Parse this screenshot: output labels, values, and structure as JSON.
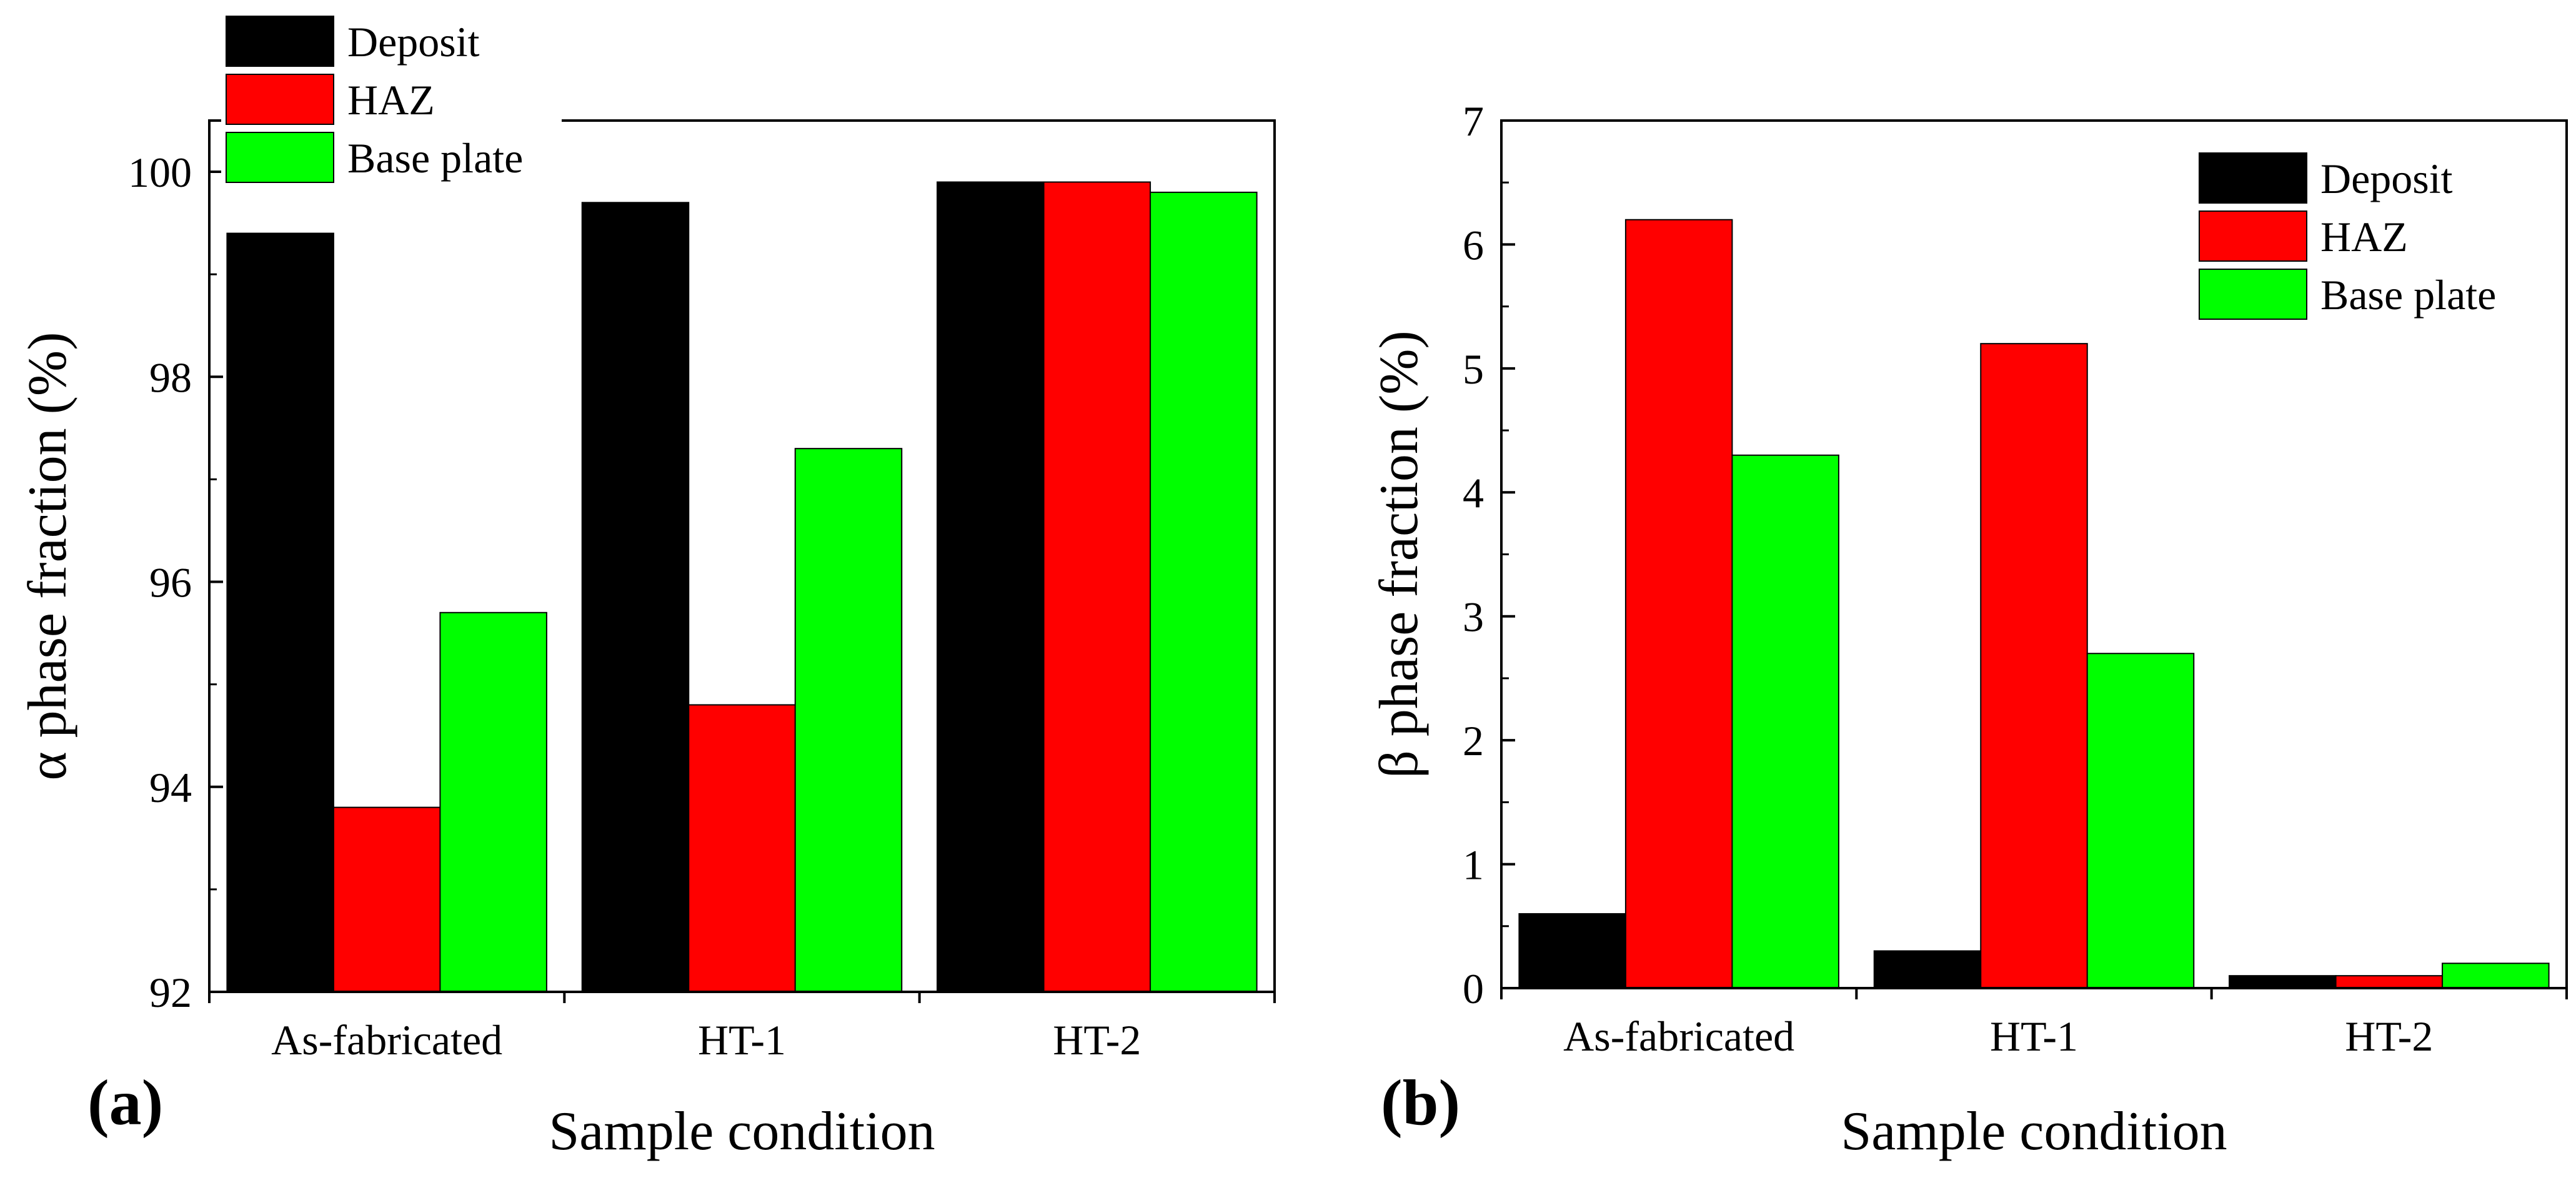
{
  "chart_data": [
    {
      "type": "bar",
      "panel_label": "(a)",
      "title": "",
      "xlabel": "Sample condition",
      "ylabel": "α phase fraction (%)",
      "categories": [
        "As-fabricated",
        "HT-1",
        "HT-2"
      ],
      "series": [
        {
          "name": "Deposit",
          "values": [
            99.4,
            99.7,
            99.9
          ]
        },
        {
          "name": "HAZ",
          "values": [
            93.8,
            94.8,
            99.9
          ]
        },
        {
          "name": "Base plate",
          "values": [
            95.7,
            97.3,
            99.8
          ]
        }
      ],
      "ylim": [
        92,
        100.5
      ],
      "yticks": [
        92,
        94,
        96,
        98,
        100
      ],
      "legend_position": "top-left, outside above plot",
      "grid": false
    },
    {
      "type": "bar",
      "panel_label": "(b)",
      "title": "",
      "xlabel": "Sample condition",
      "ylabel": "β phase fraction (%)",
      "categories": [
        "As-fabricated",
        "HT-1",
        "HT-2"
      ],
      "series": [
        {
          "name": "Deposit",
          "values": [
            0.6,
            0.3,
            0.1
          ]
        },
        {
          "name": "HAZ",
          "values": [
            6.2,
            5.2,
            0.1
          ]
        },
        {
          "name": "Base plate",
          "values": [
            4.3,
            2.7,
            0.2
          ]
        }
      ],
      "ylim": [
        0,
        7
      ],
      "yticks": [
        0,
        1,
        2,
        3,
        4,
        5,
        6,
        7
      ],
      "legend_position": "top-right",
      "grid": false
    }
  ],
  "colors": {
    "Deposit": "#000000",
    "HAZ": "#ff0000",
    "Base plate": "#00ff00"
  }
}
